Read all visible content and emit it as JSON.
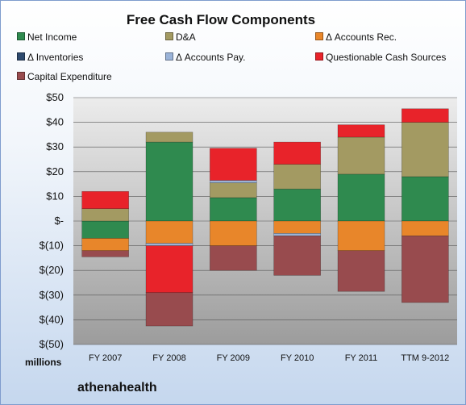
{
  "chart_data": {
    "type": "bar",
    "stacked": true,
    "title": "Free Cash Flow Components",
    "units_label": "millions",
    "company": "athenahealth",
    "categories": [
      "FY 2007",
      "FY 2008",
      "FY 2009",
      "FY 2010",
      "FY 2011",
      "TTM 9-2012"
    ],
    "y_tick_labels": [
      "$50",
      "$40",
      "$30",
      "$20",
      "$10",
      "$-",
      "$(10)",
      "$(20)",
      "$(30)",
      "$(40)",
      "$(50)"
    ],
    "ylim": [
      -50,
      50
    ],
    "grid": true,
    "legend_position": "top",
    "series": [
      {
        "name": "Net Income",
        "color": "#2f8a4f",
        "values": [
          -7,
          32,
          9.5,
          13,
          19,
          18
        ]
      },
      {
        "name": "D&A",
        "color": "#a39a62",
        "values": [
          5,
          4,
          6,
          10,
          15,
          22
        ]
      },
      {
        "name": "Δ Accounts Rec.",
        "color": "#e8862a",
        "values": [
          -5,
          -9,
          -10,
          -5,
          -12,
          -6
        ]
      },
      {
        "name": "Δ Inventories",
        "color": "#2e4a6e",
        "values": [
          0,
          0,
          0,
          0,
          0,
          0
        ]
      },
      {
        "name": "Δ Accounts Pay.",
        "color": "#9ab3d8",
        "values": [
          0,
          -1,
          1,
          -1,
          0,
          0
        ]
      },
      {
        "name": "Questionable Cash Sources",
        "color": "#e8232a",
        "values": [
          7,
          -19,
          13,
          9,
          5,
          5.5
        ]
      },
      {
        "name": "Capital Expenditure",
        "color": "#984b4e",
        "values": [
          -2.5,
          -13.5,
          -10,
          -16,
          -16.5,
          -27
        ]
      }
    ]
  }
}
